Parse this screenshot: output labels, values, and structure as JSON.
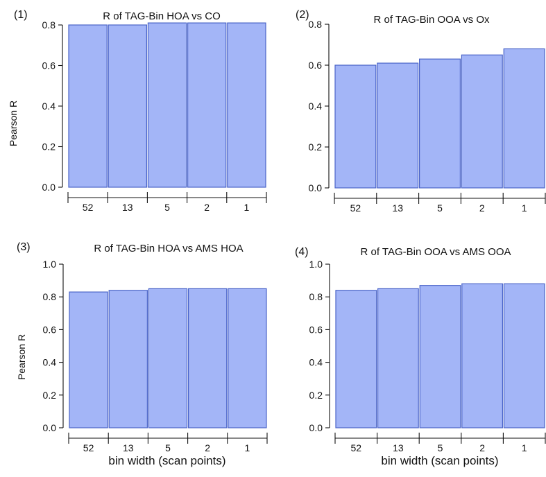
{
  "colors": {
    "bar_fill": "#a3b5f7",
    "bar_stroke": "#4a64c8",
    "axis": "#111111"
  },
  "chart_data": [
    {
      "type": "bar",
      "panel_tag": "(1)",
      "title": "R of TAG-Bin HOA vs CO",
      "ylabel": "Pearson R",
      "xlabel": "",
      "categories": [
        "52",
        "13",
        "5",
        "2",
        "1"
      ],
      "values": [
        0.8,
        0.8,
        0.81,
        0.81,
        0.81
      ],
      "ylim": [
        0,
        0.8
      ],
      "yticks": [
        "0.0",
        "0.2",
        "0.4",
        "0.6",
        "0.8"
      ],
      "grid": false
    },
    {
      "type": "bar",
      "panel_tag": "(2)",
      "title": "R of TAG-Bin OOA vs Ox",
      "ylabel": "",
      "xlabel": "",
      "categories": [
        "52",
        "13",
        "5",
        "2",
        "1"
      ],
      "values": [
        0.6,
        0.61,
        0.63,
        0.65,
        0.68
      ],
      "ylim": [
        0,
        0.8
      ],
      "yticks": [
        "0.0",
        "0.2",
        "0.4",
        "0.6",
        "0.8"
      ],
      "grid": false
    },
    {
      "type": "bar",
      "panel_tag": "(3)",
      "title": "R of TAG-Bin HOA vs AMS HOA",
      "ylabel": "Pearson R",
      "xlabel": "bin width (scan points)",
      "categories": [
        "52",
        "13",
        "5",
        "2",
        "1"
      ],
      "values": [
        0.83,
        0.84,
        0.85,
        0.85,
        0.85
      ],
      "ylim": [
        0,
        1.0
      ],
      "yticks": [
        "0.0",
        "0.2",
        "0.4",
        "0.6",
        "0.8",
        "1.0"
      ],
      "grid": false
    },
    {
      "type": "bar",
      "panel_tag": "(4)",
      "title": "R of TAG-Bin OOA vs AMS OOA",
      "ylabel": "",
      "xlabel": "bin width (scan points)",
      "categories": [
        "52",
        "13",
        "5",
        "2",
        "1"
      ],
      "values": [
        0.84,
        0.85,
        0.87,
        0.88,
        0.88
      ],
      "ylim": [
        0,
        1.0
      ],
      "yticks": [
        "0.0",
        "0.2",
        "0.4",
        "0.6",
        "0.8",
        "1.0"
      ],
      "grid": false
    }
  ]
}
